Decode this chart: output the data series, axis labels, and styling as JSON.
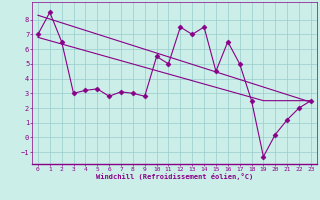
{
  "xlabel": "Windchill (Refroidissement éolien,°C)",
  "bg_color": "#cceee8",
  "line_color": "#880088",
  "x_data": [
    0,
    1,
    2,
    3,
    4,
    5,
    6,
    7,
    8,
    9,
    10,
    11,
    12,
    13,
    14,
    15,
    16,
    17,
    18,
    19,
    20,
    21,
    22,
    23
  ],
  "y_data": [
    7,
    8.5,
    6.5,
    3.0,
    3.2,
    3.3,
    2.8,
    3.1,
    3.0,
    2.8,
    5.5,
    5.0,
    7.5,
    7.0,
    7.5,
    4.5,
    6.5,
    5.0,
    2.5,
    -1.3,
    0.2,
    1.2,
    2.0,
    2.5
  ],
  "trend1_x": [
    0,
    23
  ],
  "trend1_y": [
    8.3,
    2.4
  ],
  "trend2_x": [
    0,
    19,
    23
  ],
  "trend2_y": [
    6.8,
    2.5,
    2.5
  ],
  "ylim": [
    -1.8,
    9.2
  ],
  "xlim": [
    -0.5,
    23.5
  ],
  "yticks": [
    -1,
    0,
    1,
    2,
    3,
    4,
    5,
    6,
    7,
    8
  ],
  "xticks": [
    0,
    1,
    2,
    3,
    4,
    5,
    6,
    7,
    8,
    9,
    10,
    11,
    12,
    13,
    14,
    15,
    16,
    17,
    18,
    19,
    20,
    21,
    22,
    23
  ],
  "grid_color": "#99cccc",
  "marker": "D",
  "markersize": 2.5,
  "linewidth": 0.8,
  "tick_fontsize": 4.5,
  "xlabel_fontsize": 5.0
}
